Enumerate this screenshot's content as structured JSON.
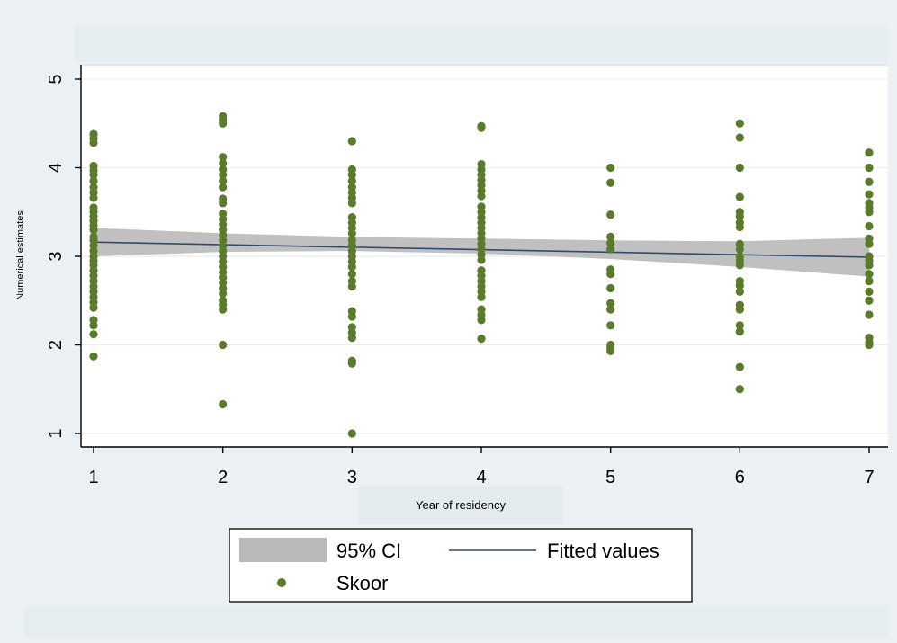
{
  "chart_data": {
    "type": "scatter",
    "xlabel": "Year of residency",
    "ylabel": "Numerical estimates",
    "xlim": [
      1,
      7
    ],
    "ylim": [
      1,
      5
    ],
    "x_ticks": [
      1,
      2,
      3,
      4,
      5,
      6,
      7
    ],
    "y_ticks": [
      1,
      2,
      3,
      4,
      5
    ],
    "grid": "horizontal",
    "legend_position": "bottom",
    "legend": [
      "95% CI",
      "Fitted values",
      "Skoor"
    ],
    "colors": {
      "points": "#5b7a2b",
      "fit_line": "#2f4a6e",
      "ci_band": "#b9b9b9",
      "plot_bg": "#ffffff",
      "page_bg": "#eaf0f3"
    },
    "series": [
      {
        "name": "Skoor",
        "type": "scatter",
        "points": [
          [
            1,
            4.38
          ],
          [
            1,
            4.33
          ],
          [
            1,
            4.28
          ],
          [
            1,
            4.02
          ],
          [
            1,
            3.97
          ],
          [
            1,
            3.92
          ],
          [
            1,
            3.85
          ],
          [
            1,
            3.78
          ],
          [
            1,
            3.72
          ],
          [
            1,
            3.66
          ],
          [
            1,
            3.55
          ],
          [
            1,
            3.5
          ],
          [
            1,
            3.45
          ],
          [
            1,
            3.4
          ],
          [
            1,
            3.35
          ],
          [
            1,
            3.3
          ],
          [
            1,
            3.22
          ],
          [
            1,
            3.18
          ],
          [
            1,
            3.12
          ],
          [
            1,
            3.06
          ],
          [
            1,
            3.0
          ],
          [
            1,
            2.95
          ],
          [
            1,
            2.9
          ],
          [
            1,
            2.84
          ],
          [
            1,
            2.78
          ],
          [
            1,
            2.72
          ],
          [
            1,
            2.66
          ],
          [
            1,
            2.6
          ],
          [
            1,
            2.54
          ],
          [
            1,
            2.48
          ],
          [
            1,
            2.42
          ],
          [
            1,
            2.28
          ],
          [
            1,
            2.22
          ],
          [
            1,
            2.12
          ],
          [
            1,
            1.87
          ],
          [
            2,
            4.58
          ],
          [
            2,
            4.54
          ],
          [
            2,
            4.5
          ],
          [
            2,
            4.12
          ],
          [
            2,
            4.05
          ],
          [
            2,
            3.98
          ],
          [
            2,
            3.92
          ],
          [
            2,
            3.85
          ],
          [
            2,
            3.78
          ],
          [
            2,
            3.65
          ],
          [
            2,
            3.6
          ],
          [
            2,
            3.48
          ],
          [
            2,
            3.42
          ],
          [
            2,
            3.36
          ],
          [
            2,
            3.3
          ],
          [
            2,
            3.24
          ],
          [
            2,
            3.18
          ],
          [
            2,
            3.12
          ],
          [
            2,
            3.06
          ],
          [
            2,
            3.0
          ],
          [
            2,
            2.94
          ],
          [
            2,
            2.88
          ],
          [
            2,
            2.82
          ],
          [
            2,
            2.76
          ],
          [
            2,
            2.7
          ],
          [
            2,
            2.64
          ],
          [
            2,
            2.58
          ],
          [
            2,
            2.5
          ],
          [
            2,
            2.45
          ],
          [
            2,
            2.4
          ],
          [
            2,
            2.0
          ],
          [
            2,
            1.33
          ],
          [
            3,
            4.3
          ],
          [
            3,
            3.98
          ],
          [
            3,
            3.92
          ],
          [
            3,
            3.85
          ],
          [
            3,
            3.78
          ],
          [
            3,
            3.72
          ],
          [
            3,
            3.66
          ],
          [
            3,
            3.6
          ],
          [
            3,
            3.44
          ],
          [
            3,
            3.38
          ],
          [
            3,
            3.32
          ],
          [
            3,
            3.26
          ],
          [
            3,
            3.18
          ],
          [
            3,
            3.12
          ],
          [
            3,
            3.06
          ],
          [
            3,
            3.0
          ],
          [
            3,
            2.94
          ],
          [
            3,
            2.88
          ],
          [
            3,
            2.8
          ],
          [
            3,
            2.72
          ],
          [
            3,
            2.66
          ],
          [
            3,
            2.38
          ],
          [
            3,
            2.32
          ],
          [
            3,
            2.2
          ],
          [
            3,
            2.14
          ],
          [
            3,
            2.08
          ],
          [
            3,
            1.82
          ],
          [
            3,
            1.79
          ],
          [
            3,
            1.0
          ],
          [
            4,
            4.47
          ],
          [
            4,
            4.45
          ],
          [
            4,
            4.04
          ],
          [
            4,
            3.98
          ],
          [
            4,
            3.92
          ],
          [
            4,
            3.86
          ],
          [
            4,
            3.8
          ],
          [
            4,
            3.74
          ],
          [
            4,
            3.68
          ],
          [
            4,
            3.56
          ],
          [
            4,
            3.5
          ],
          [
            4,
            3.44
          ],
          [
            4,
            3.38
          ],
          [
            4,
            3.32
          ],
          [
            4,
            3.26
          ],
          [
            4,
            3.2
          ],
          [
            4,
            3.14
          ],
          [
            4,
            3.08
          ],
          [
            4,
            3.02
          ],
          [
            4,
            2.96
          ],
          [
            4,
            2.84
          ],
          [
            4,
            2.78
          ],
          [
            4,
            2.72
          ],
          [
            4,
            2.66
          ],
          [
            4,
            2.6
          ],
          [
            4,
            2.54
          ],
          [
            4,
            2.4
          ],
          [
            4,
            2.34
          ],
          [
            4,
            2.28
          ],
          [
            4,
            2.07
          ],
          [
            5,
            4.0
          ],
          [
            5,
            3.83
          ],
          [
            5,
            3.47
          ],
          [
            5,
            3.22
          ],
          [
            5,
            3.15
          ],
          [
            5,
            3.08
          ],
          [
            5,
            2.85
          ],
          [
            5,
            2.8
          ],
          [
            5,
            2.64
          ],
          [
            5,
            2.47
          ],
          [
            5,
            2.4
          ],
          [
            5,
            2.22
          ],
          [
            5,
            2.0
          ],
          [
            5,
            1.96
          ],
          [
            5,
            1.93
          ],
          [
            6,
            4.5
          ],
          [
            6,
            4.34
          ],
          [
            6,
            4.0
          ],
          [
            6,
            3.67
          ],
          [
            6,
            3.5
          ],
          [
            6,
            3.45
          ],
          [
            6,
            3.38
          ],
          [
            6,
            3.33
          ],
          [
            6,
            3.14
          ],
          [
            6,
            3.08
          ],
          [
            6,
            3.0
          ],
          [
            6,
            2.95
          ],
          [
            6,
            2.9
          ],
          [
            6,
            2.72
          ],
          [
            6,
            2.67
          ],
          [
            6,
            2.6
          ],
          [
            6,
            2.45
          ],
          [
            6,
            2.4
          ],
          [
            6,
            2.22
          ],
          [
            6,
            2.15
          ],
          [
            6,
            1.75
          ],
          [
            6,
            1.5
          ],
          [
            7,
            4.17
          ],
          [
            7,
            4.0
          ],
          [
            7,
            3.84
          ],
          [
            7,
            3.7
          ],
          [
            7,
            3.6
          ],
          [
            7,
            3.55
          ],
          [
            7,
            3.5
          ],
          [
            7,
            3.34
          ],
          [
            7,
            3.2
          ],
          [
            7,
            3.14
          ],
          [
            7,
            3.0
          ],
          [
            7,
            2.95
          ],
          [
            7,
            2.9
          ],
          [
            7,
            2.8
          ],
          [
            7,
            2.72
          ],
          [
            7,
            2.6
          ],
          [
            7,
            2.5
          ],
          [
            7,
            2.34
          ],
          [
            7,
            2.08
          ],
          [
            7,
            2.03
          ],
          [
            7,
            2.0
          ]
        ]
      },
      {
        "name": "Fitted values",
        "type": "line",
        "x": [
          1,
          7
        ],
        "y": [
          3.16,
          2.99
        ]
      },
      {
        "name": "95% CI",
        "type": "area",
        "x": [
          1,
          2,
          3,
          4,
          5,
          6,
          7
        ],
        "lower": [
          3.0,
          3.05,
          3.06,
          3.03,
          2.97,
          2.88,
          2.77
        ],
        "upper": [
          3.32,
          3.26,
          3.22,
          3.2,
          3.18,
          3.17,
          3.21
        ]
      }
    ]
  }
}
